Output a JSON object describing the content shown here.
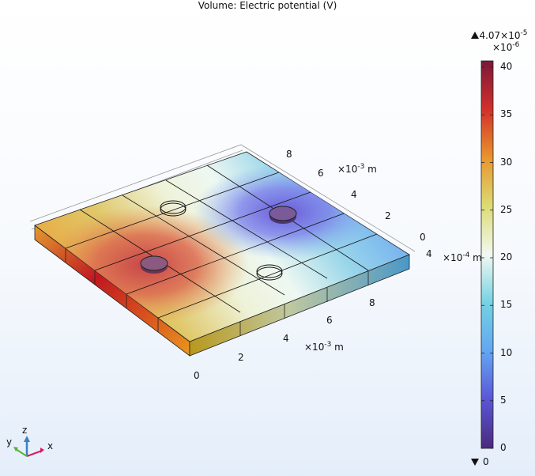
{
  "title": "Volume: Electric potential (V)",
  "chart_data": {
    "type": "heatmap",
    "title": "Volume: Electric potential (V)",
    "quantity": "Electric potential",
    "unit": "V",
    "colorbar": {
      "max_label": "4.07×10",
      "max_exp": "-5",
      "min_label": "0",
      "scale_label": "×10",
      "scale_exp": "-6",
      "range": [
        0,
        40.7
      ],
      "ticks": [
        "40",
        "35",
        "30",
        "25",
        "20",
        "15",
        "10",
        "5",
        "0"
      ],
      "colors": [
        "#4b2a7c",
        "#5a55d6",
        "#63a6f2",
        "#74d2e2",
        "#f2f8f2",
        "#dcdc74",
        "#e9952e",
        "#d2302a",
        "#7b1838"
      ]
    },
    "x_axis": {
      "ticks": [
        "0",
        "2",
        "4",
        "6",
        "8"
      ],
      "unit_label": "×10",
      "unit_exp": "-3",
      "unit": "m"
    },
    "y_axis": {
      "ticks": [
        "0",
        "2",
        "4",
        "6",
        "8"
      ],
      "unit_label": "×10",
      "unit_exp": "-3",
      "unit": "m"
    },
    "z_axis": {
      "ticks": [
        "4"
      ],
      "unit_label": "×10",
      "unit_exp": "-4",
      "unit": "m"
    }
  },
  "triad": {
    "x": "x",
    "y": "y",
    "z": "z"
  }
}
